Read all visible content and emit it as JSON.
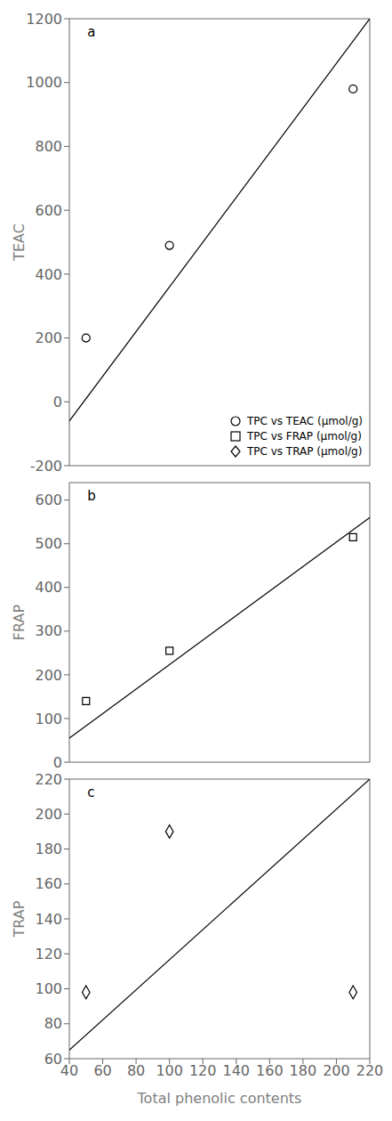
{
  "chart_data": [
    {
      "type": "scatter",
      "annotations": [
        "a"
      ],
      "ylabel": "TEAC",
      "xlim": [
        40,
        220
      ],
      "xticks": [
        40,
        60,
        80,
        100,
        120,
        140,
        160,
        180,
        200,
        220
      ],
      "ylim": [
        -200,
        1200
      ],
      "yticks": [
        -200,
        0,
        200,
        400,
        600,
        800,
        1000,
        1200
      ],
      "tick_labels": "y",
      "grid": false,
      "legend": "lower right",
      "series": [
        {
          "name": "TPC vs TEAC (μmol/g)",
          "type": "scatter",
          "marker": "circle",
          "color": "#000000",
          "x": [
            50,
            100,
            210
          ],
          "values": [
            200,
            490,
            980
          ]
        },
        {
          "type": "line",
          "color": "#000000",
          "x": [
            40,
            220
          ],
          "values": [
            -60,
            1200
          ]
        }
      ]
    },
    {
      "type": "scatter",
      "annotations": [
        "b"
      ],
      "ylabel": "FRAP",
      "xlim": [
        40,
        220
      ],
      "xticks": [
        40,
        60,
        80,
        100,
        120,
        140,
        160,
        180,
        200,
        220
      ],
      "ylim": [
        0,
        640
      ],
      "yticks": [
        0,
        100,
        200,
        300,
        400,
        500,
        600
      ],
      "tick_labels": "y",
      "grid": false,
      "series": [
        {
          "name": "TPC vs FRAP (μmol/g)",
          "type": "scatter",
          "marker": "square",
          "color": "#000000",
          "x": [
            50,
            100,
            210
          ],
          "values": [
            140,
            255,
            515
          ]
        },
        {
          "type": "line",
          "color": "#000000",
          "x": [
            40,
            220
          ],
          "values": [
            55,
            560
          ]
        }
      ]
    },
    {
      "type": "scatter",
      "annotations": [
        "c"
      ],
      "ylabel": "TRAP",
      "xlabel": "Total phenolic contents",
      "xlim": [
        40,
        220
      ],
      "xticks": [
        40,
        60,
        80,
        100,
        120,
        140,
        160,
        180,
        200,
        220
      ],
      "ylim": [
        60,
        220
      ],
      "yticks": [
        60,
        80,
        100,
        120,
        140,
        160,
        180,
        200,
        220
      ],
      "grid": false,
      "series": [
        {
          "name": "TPC vs TRAP (μmol/g)",
          "type": "scatter",
          "marker": "diamond",
          "color": "#000000",
          "x": [
            50,
            100,
            210
          ],
          "values": [
            98,
            190,
            98
          ]
        },
        {
          "type": "line",
          "color": "#000000",
          "x": [
            40,
            220
          ],
          "values": [
            65,
            220
          ]
        }
      ]
    }
  ]
}
